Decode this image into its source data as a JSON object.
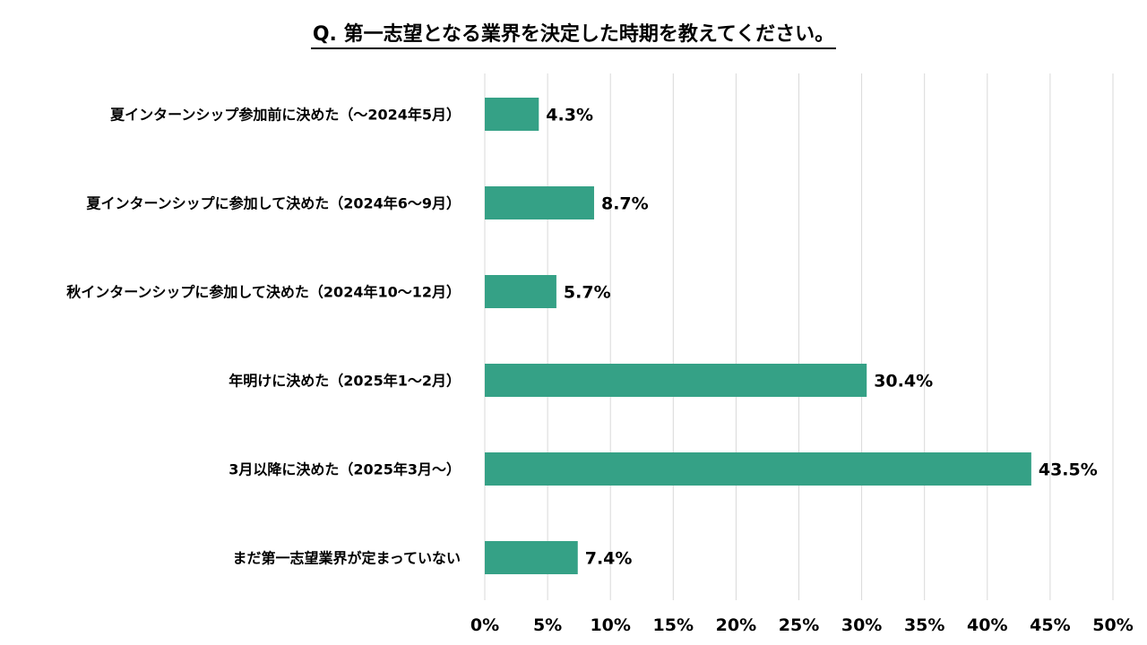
{
  "chart_data": {
    "type": "bar",
    "orientation": "horizontal",
    "title": "Q. 第一志望となる業界を決定した時期を教えてください。",
    "categories": [
      "夏インターンシップ参加前に決めた（～2024年5月）",
      "夏インターンシップに参加して決めた（2024年6～9月）",
      "秋インターンシップに参加して決めた（2024年10～12月）",
      "年明けに決めた（2025年1～2月）",
      "3月以降に決めた（2025年3月～）",
      "まだ第一志望業界が定まっていない"
    ],
    "values": [
      4.3,
      8.7,
      5.7,
      30.4,
      43.5,
      7.4
    ],
    "data_labels": [
      "4.3%",
      "8.7%",
      "5.7%",
      "30.4%",
      "43.5%",
      "7.4%"
    ],
    "x_ticks": [
      0,
      5,
      10,
      15,
      20,
      25,
      30,
      35,
      40,
      45,
      50
    ],
    "x_tick_labels": [
      "0%",
      "5%",
      "10%",
      "15%",
      "20%",
      "25%",
      "30%",
      "35%",
      "40%",
      "45%",
      "50%"
    ],
    "xlim": [
      0,
      50
    ],
    "grid": "vertical",
    "legend": "none",
    "colors": {
      "bar": "#35a186",
      "grid": "#d9d9d9",
      "text": "#000000"
    }
  }
}
